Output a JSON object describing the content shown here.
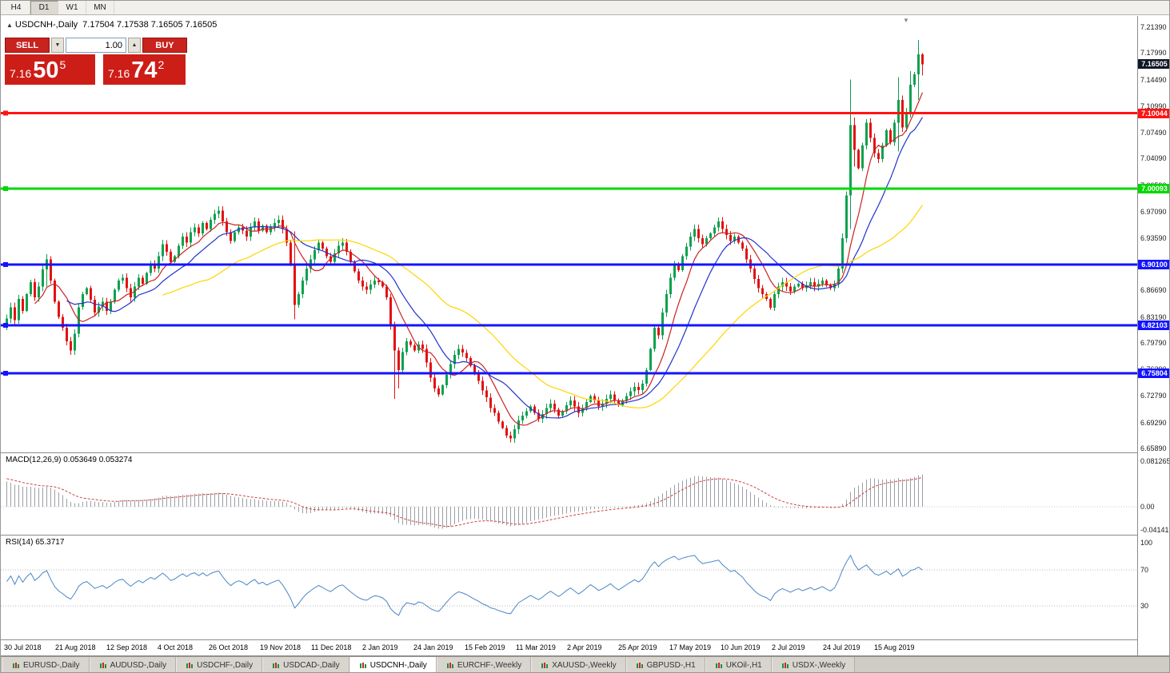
{
  "toolbar": {
    "buttons": [
      {
        "label": "H4",
        "active": false
      },
      {
        "label": "D1",
        "active": true
      },
      {
        "label": "W1",
        "active": false
      },
      {
        "label": "MN",
        "active": false
      }
    ]
  },
  "chart_header": {
    "marker": "▲",
    "title": "USDCNH-,Daily",
    "values": "7.17504 7.17538 7.16505 7.16505"
  },
  "trade_panel": {
    "sell_label": "SELL",
    "buy_label": "BUY",
    "volume": "1.00",
    "spinner_down": "▼",
    "spinner_up": "▲",
    "sell_price_prefix": "7.16",
    "sell_price_big": "50",
    "sell_price_sup": "5",
    "buy_price_prefix": "7.16",
    "buy_price_big": "74",
    "buy_price_sup": "2"
  },
  "shift_marker": "▼",
  "chart_data": {
    "type": "candlestick",
    "symbol": "USDCNH-",
    "timeframe": "Daily",
    "ohlc_display": {
      "open": "7.17504",
      "high": "7.17538",
      "low": "7.16505",
      "close": "7.16505"
    },
    "y_range": [
      6.6589,
      7.2139
    ],
    "y_ticks": [
      "7.21390",
      "7.17990",
      "7.14490",
      "7.10990",
      "7.07490",
      "7.04090",
      "7.00590",
      "6.97090",
      "6.93590",
      "6.90090",
      "6.86690",
      "6.83190",
      "6.79790",
      "6.76290",
      "6.72790",
      "6.69290",
      "6.65890"
    ],
    "x_labels": [
      "30 Jul 2018",
      "21 Aug 2018",
      "12 Sep 2018",
      "4 Oct 2018",
      "26 Oct 2018",
      "19 Nov 2018",
      "11 Dec 2018",
      "2 Jan 2019",
      "24 Jan 2019",
      "15 Feb 2019",
      "11 Mar 2019",
      "2 Apr 2019",
      "25 Apr 2019",
      "17 May 2019",
      "10 Jun 2019",
      "2 Jul 2019",
      "24 Jul 2019",
      "15 Aug 2019"
    ],
    "first_open": 6.82,
    "closes": [
      6.83,
      6.845,
      6.828,
      6.856,
      6.84,
      6.862,
      6.878,
      6.858,
      6.872,
      6.895,
      6.908,
      6.88,
      6.852,
      6.832,
      6.818,
      6.8,
      6.788,
      6.81,
      6.845,
      6.862,
      6.87,
      6.855,
      6.838,
      6.846,
      6.852,
      6.84,
      6.852,
      6.868,
      6.88,
      6.884,
      6.87,
      6.858,
      6.872,
      6.884,
      6.876,
      6.89,
      6.902,
      6.896,
      6.912,
      6.928,
      6.918,
      6.905,
      6.912,
      6.926,
      6.938,
      6.93,
      6.944,
      6.95,
      6.942,
      6.956,
      6.948,
      6.96,
      6.968,
      6.972,
      6.958,
      6.944,
      6.932,
      6.944,
      6.95,
      6.946,
      6.938,
      6.95,
      6.958,
      6.946,
      6.952,
      6.944,
      6.95,
      6.956,
      6.96,
      6.948,
      6.93,
      6.902,
      6.848,
      6.862,
      6.88,
      6.896,
      6.908,
      6.92,
      6.93,
      6.922,
      6.912,
      6.905,
      6.916,
      6.926,
      6.93,
      6.918,
      6.905,
      6.892,
      6.88,
      6.872,
      6.868,
      6.875,
      6.88,
      6.878,
      6.872,
      6.858,
      6.82,
      6.788,
      6.762,
      6.786,
      6.8,
      6.795,
      6.788,
      6.796,
      6.79,
      6.772,
      6.752,
      6.738,
      6.73,
      6.742,
      6.756,
      6.77,
      6.782,
      6.79,
      6.785,
      6.778,
      6.768,
      6.758,
      6.748,
      6.735,
      6.726,
      6.712,
      6.706,
      6.694,
      6.686,
      6.676,
      6.672,
      6.684,
      6.696,
      6.702,
      6.708,
      6.714,
      6.706,
      6.698,
      6.704,
      6.712,
      6.718,
      6.71,
      6.702,
      6.708,
      6.716,
      6.722,
      6.714,
      6.706,
      6.712,
      6.72,
      6.728,
      6.722,
      6.714,
      6.718,
      6.724,
      6.73,
      6.722,
      6.716,
      6.722,
      6.728,
      6.734,
      6.74,
      6.736,
      6.744,
      6.762,
      6.79,
      6.818,
      6.808,
      6.838,
      6.862,
      6.884,
      6.902,
      6.894,
      6.912,
      6.925,
      6.938,
      6.948,
      6.936,
      6.928,
      6.936,
      6.942,
      6.95,
      6.958,
      6.948,
      6.94,
      6.932,
      6.938,
      6.93,
      6.922,
      6.908,
      6.896,
      6.882,
      6.87,
      6.862,
      6.856,
      6.844,
      6.862,
      6.872,
      6.878,
      6.872,
      6.866,
      6.872,
      6.876,
      6.87,
      6.874,
      6.878,
      6.872,
      6.876,
      6.88,
      6.874,
      6.87,
      6.876,
      6.896,
      6.936,
      6.992,
      7.085,
      7.052,
      7.028,
      7.058,
      7.088,
      7.068,
      7.048,
      7.04,
      7.058,
      7.078,
      7.062,
      7.088,
      7.118,
      7.082,
      7.102,
      7.138,
      7.152,
      7.178,
      7.165
    ],
    "wick_overrides": {
      "10": [
        6.915,
        6.872
      ],
      "72": [
        6.945,
        6.829
      ],
      "97": [
        6.826,
        6.724
      ],
      "98": [
        6.792,
        6.738
      ],
      "211": [
        7.1449,
        6.948
      ],
      "212": [
        7.095,
        7.03
      ],
      "223": [
        7.148,
        7.05
      ],
      "226": [
        7.156,
        7.095
      ],
      "228": [
        7.1969,
        7.118
      ],
      "229": [
        7.1799,
        7.15
      ]
    },
    "colors": {
      "up": "#0ba14e",
      "down": "#e31212"
    },
    "moving_averages": [
      {
        "period": 8,
        "color": "#cc2222"
      },
      {
        "period": 16,
        "color": "#2233cc"
      },
      {
        "period": 40,
        "color": "#ffd400"
      }
    ],
    "hlines": [
      {
        "price": 7.10044,
        "label": "7.10044",
        "color": "#ff1414",
        "width": 3
      },
      {
        "price": 7.00093,
        "label": "7.00093",
        "color": "#00d800",
        "width": 3
      },
      {
        "price": 6.901,
        "label": "6.90100",
        "color": "#1414ff",
        "width": 3
      },
      {
        "price": 6.82103,
        "label": "6.82103",
        "color": "#1414ff",
        "width": 3
      },
      {
        "price": 6.75804,
        "label": "6.75804",
        "color": "#1414ff",
        "width": 3
      }
    ],
    "current_price": {
      "value": 7.16505,
      "label": "7.16505",
      "badge_color": "#101826"
    },
    "macd": {
      "label": "MACD(12,26,9) 0.053649 0.053274",
      "fast": 12,
      "slow": 26,
      "signal": 9,
      "y_ticks": [
        "0.081265",
        "0.00",
        "-0.041412"
      ],
      "y_range": [
        -0.041412,
        0.081265
      ],
      "histogram_color": "#9aa0a6",
      "signal_color": "#d23f3f"
    },
    "rsi": {
      "label": "RSI(14) 65.3717",
      "period": 14,
      "value": 65.3717,
      "y_ticks": [
        {
          "v": 100,
          "t": "100"
        },
        {
          "v": 70,
          "t": "70"
        },
        {
          "v": 30,
          "t": "30"
        }
      ],
      "levels": [
        70,
        30
      ],
      "line_color": "#4a86c8"
    }
  },
  "tabs": [
    {
      "label": "EURUSD-,Daily",
      "active": false
    },
    {
      "label": "AUDUSD-,Daily",
      "active": false
    },
    {
      "label": "USDCHF-,Daily",
      "active": false
    },
    {
      "label": "USDCAD-,Daily",
      "active": false
    },
    {
      "label": "USDCNH-,Daily",
      "active": true
    },
    {
      "label": "EURCHF-,Weekly",
      "active": false
    },
    {
      "label": "XAUUSD-,Weekly",
      "active": false
    },
    {
      "label": "GBPUSD-,H1",
      "active": false
    },
    {
      "label": "UKOil-,H1",
      "active": false
    },
    {
      "label": "USDX-,Weekly",
      "active": false
    }
  ]
}
